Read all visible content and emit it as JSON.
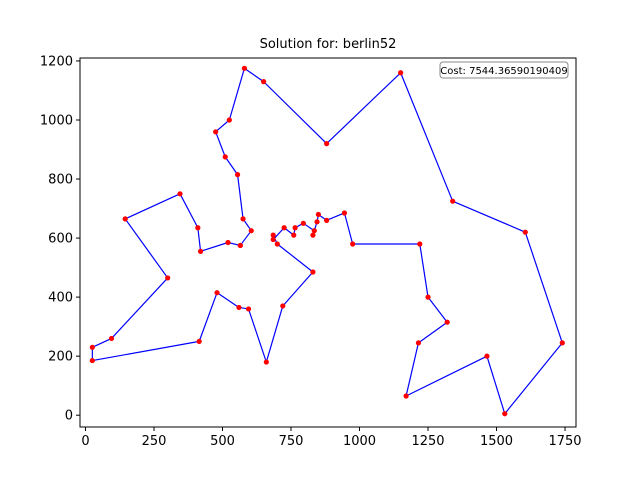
{
  "chart_data": {
    "type": "line",
    "title": "Solution for: berlin52",
    "xlabel": "",
    "ylabel": "",
    "xlim": [
      -20,
      1790
    ],
    "ylim": [
      -40,
      1210
    ],
    "xticks": [
      0,
      250,
      500,
      750,
      1000,
      1250,
      1500,
      1750
    ],
    "yticks": [
      0,
      200,
      400,
      600,
      800,
      1000,
      1200
    ],
    "grid": false,
    "line_color": "#0000ff",
    "marker_color": "#ff0000",
    "annotation": "Cost: 7544.36590190409",
    "annotation_position": "top-right",
    "series": [
      {
        "x": [
          565,
          605,
          575,
          555,
          510,
          475,
          525,
          580,
          650,
          880,
          1150,
          1340,
          1605,
          1740,
          1530,
          1465,
          1170,
          1215,
          1320,
          1250,
          1220,
          975,
          945,
          880,
          850,
          845,
          830,
          835,
          795,
          765,
          760,
          725,
          685,
          685,
          700,
          830,
          720,
          660,
          595,
          560,
          480,
          415,
          25,
          25,
          95,
          300,
          145,
          345,
          410,
          420,
          520,
          565
        ],
        "y": [
          575,
          625,
          665,
          815,
          875,
          960,
          1000,
          1175,
          1130,
          920,
          1160,
          725,
          620,
          245,
          5,
          200,
          65,
          245,
          315,
          400,
          580,
          580,
          685,
          660,
          680,
          655,
          610,
          625,
          650,
          635,
          610,
          635,
          595,
          610,
          580,
          485,
          370,
          180,
          360,
          365,
          415,
          250,
          185,
          230,
          260,
          465,
          665,
          750,
          635,
          555,
          585,
          575
        ]
      }
    ]
  }
}
